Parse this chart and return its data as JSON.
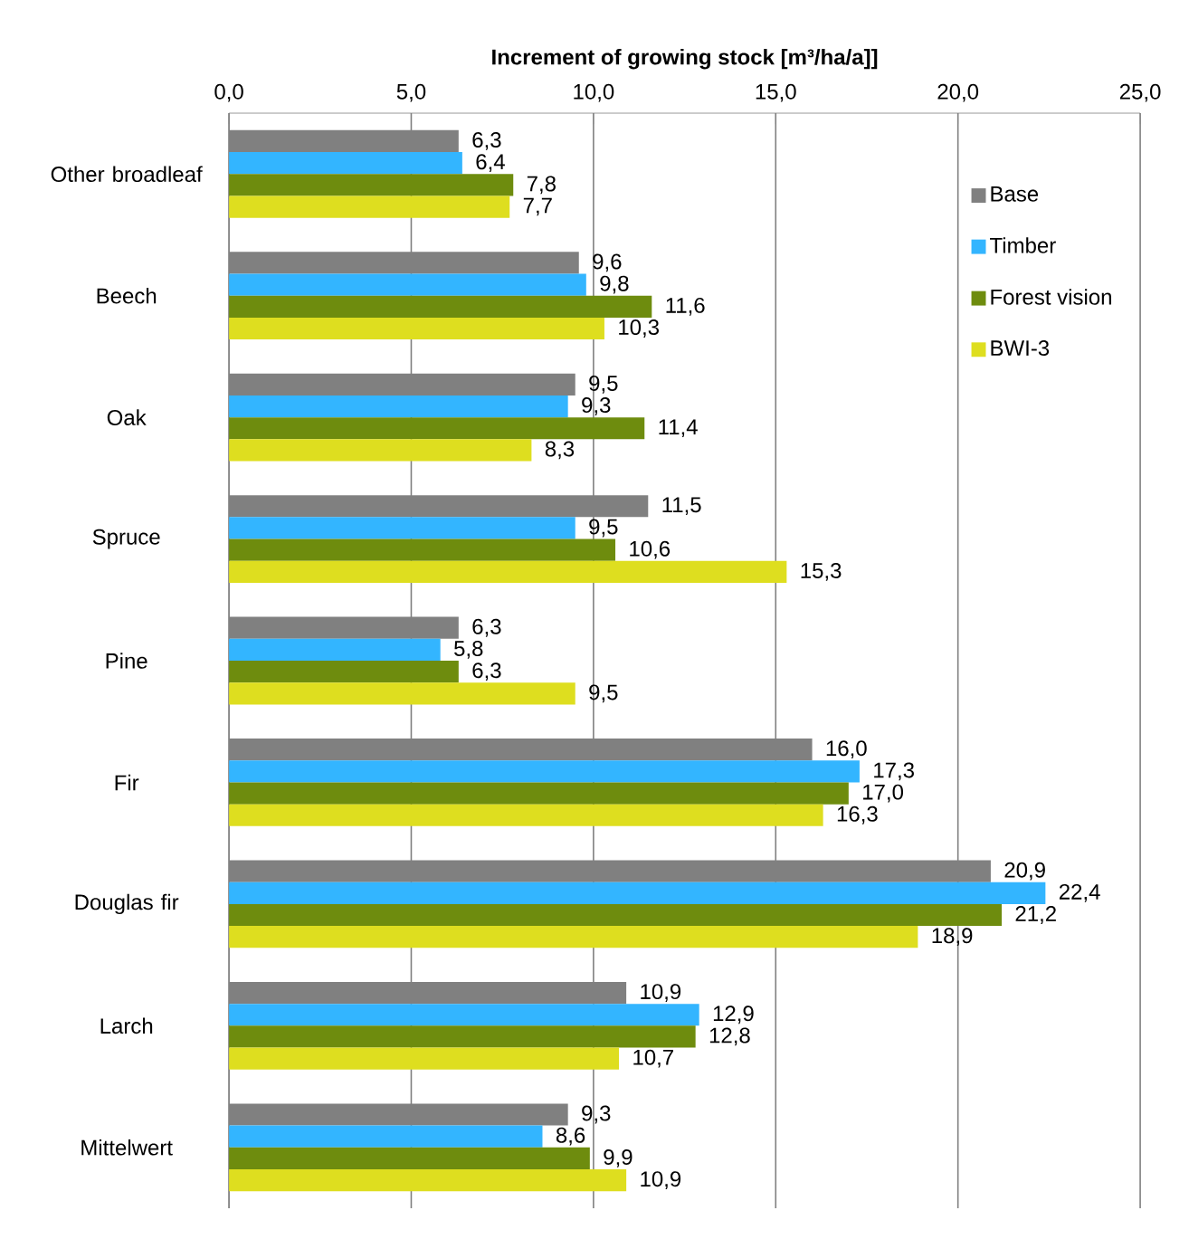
{
  "chart_data": {
    "type": "bar",
    "orientation": "horizontal",
    "xlabel": "Increment of growing stock [m³/ha/a]]",
    "categories": [
      "Other broadleaf",
      "Beech",
      "Oak",
      "Spruce",
      "Pine",
      "Fir",
      "Douglas fir",
      "Larch",
      "Mittelwert"
    ],
    "series": [
      {
        "name": "Base",
        "color": "#808080",
        "values": [
          6.3,
          9.6,
          9.5,
          11.5,
          6.3,
          16.0,
          20.9,
          10.9,
          9.3
        ],
        "value_labels": [
          "6,3",
          "9,6",
          "9,5",
          "11,5",
          "6,3",
          "16,0",
          "20,9",
          "10,9",
          "9,3"
        ]
      },
      {
        "name": "Timber",
        "color": "#33b5ff",
        "values": [
          6.4,
          9.8,
          9.3,
          9.5,
          5.8,
          17.3,
          22.4,
          12.9,
          8.6
        ],
        "value_labels": [
          "6,4",
          "9,8",
          "9,3",
          "9,5",
          "5,8",
          "17,3",
          "22,4",
          "12,9",
          "8,6"
        ]
      },
      {
        "name": "Forest vision",
        "color": "#6e8c0e",
        "values": [
          7.8,
          11.6,
          11.4,
          10.6,
          6.3,
          17.0,
          21.2,
          12.8,
          9.9
        ],
        "value_labels": [
          "7,8",
          "11,6",
          "11,4",
          "10,6",
          "6,3",
          "17,0",
          "21,2",
          "12,8",
          "9,9"
        ]
      },
      {
        "name": "BWI-3",
        "color": "#dede1f",
        "values": [
          7.7,
          10.3,
          8.3,
          15.3,
          9.5,
          16.3,
          18.9,
          10.7,
          10.9
        ],
        "value_labels": [
          "7,7",
          "10,3",
          "8,3",
          "15,3",
          "9,5",
          "16,3",
          "18,9",
          "10,7",
          "10,9"
        ]
      }
    ],
    "xlim": [
      0,
      25
    ],
    "xticks": [
      {
        "value": 0,
        "label": "0,0"
      },
      {
        "value": 5,
        "label": "5,0"
      },
      {
        "value": 10,
        "label": "10,0"
      },
      {
        "value": 15,
        "label": "15,0"
      },
      {
        "value": 20,
        "label": "20,0"
      },
      {
        "value": 25,
        "label": "25,0"
      }
    ],
    "grid": "x",
    "legend": "top right"
  }
}
